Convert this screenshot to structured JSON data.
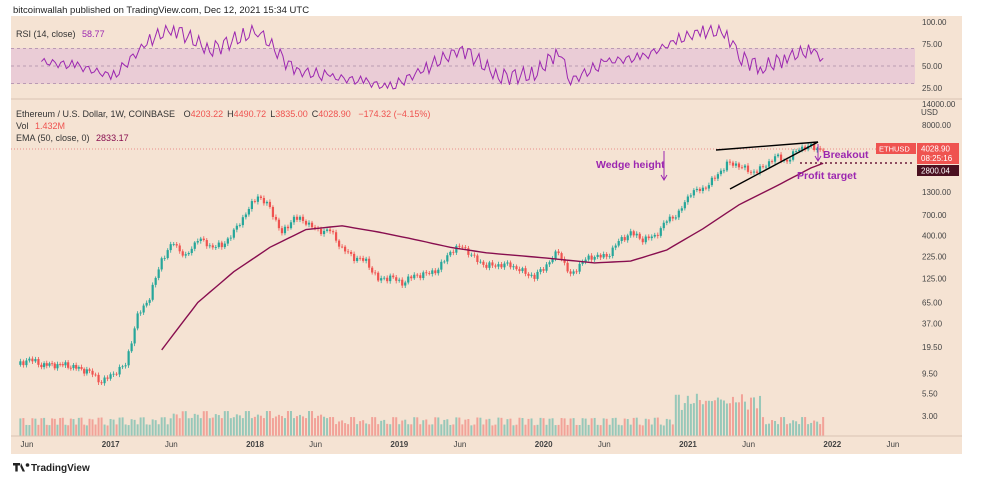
{
  "publisher_line": "bitcoinwallah published on TradingView.com, Dec 12, 2021 15:34 UTC",
  "footer_brand": "TradingView",
  "colors": {
    "bg": "#f5e3d3",
    "up": "#26a69a",
    "down": "#ef5350",
    "rsi": "#9c27b0",
    "ema": "#880e4f",
    "annot": "#9c27b0",
    "price_tag": "#ef5350",
    "target_tag": "#4a1020"
  },
  "rsi_panel": {
    "legend_name": "RSI (14, close)",
    "legend_value": "58.77",
    "ticks": [
      "100.00",
      "75.00",
      "50.00",
      "25.00"
    ],
    "upper_band": 70,
    "lower_band": 30
  },
  "main_panel": {
    "symbol_line": "Ethereum / U.S. Dollar, 1W, COINBASE",
    "ohlc": [
      {
        "k": "O",
        "v": "4203.22"
      },
      {
        "k": "H",
        "v": "4490.72"
      },
      {
        "k": "L",
        "v": "3835.00"
      },
      {
        "k": "C",
        "v": "4028.90"
      }
    ],
    "change": "−174.32 (−4.15%)",
    "vol_label": "Vol",
    "vol_value": "1.432M",
    "ema_label": "EMA (50, close, 0)",
    "ema_value": "2833.17",
    "currency": "USD",
    "price_ticks": [
      "14000.00",
      "8000.00",
      "4028.90",
      "1300.00",
      "700.00",
      "400.00",
      "225.00",
      "125.00",
      "65.00",
      "37.00",
      "19.50",
      "9.50",
      "5.50",
      "3.00"
    ],
    "x_ticks": [
      "Jun",
      "2017",
      "Jun",
      "2018",
      "Jun",
      "2019",
      "Jun",
      "2020",
      "Jun",
      "2021",
      "Jun",
      "2022",
      "Jun"
    ],
    "price_tag": {
      "symbol": "ETHUSD",
      "price": "4028.90",
      "countdown": "08:25:16"
    },
    "target_tag": "2800.04",
    "annotations": {
      "wedge_height": "Wedge height",
      "breakout": "Breakout",
      "profit_target": "Profit target"
    }
  },
  "chart_data": {
    "type": "candlestick",
    "title": "Ethereum / U.S. Dollar, 1W, COINBASE",
    "y_scale": "log",
    "ylim": [
      2.2,
      20000
    ],
    "x_range": [
      "2016-05",
      "2022-08"
    ],
    "ohlc_last": {
      "open": 4203.22,
      "high": 4490.72,
      "low": 3835.0,
      "close": 4028.9,
      "change": -174.32,
      "change_pct": -4.15
    },
    "ema50": 2833.17,
    "profit_target": 2800.04,
    "rsi": {
      "period": 14,
      "value": 58.77,
      "range": [
        0,
        100
      ]
    },
    "series": [
      {
        "name": "ETHUSD close (approx)",
        "points": [
          [
            "2016-05",
            12
          ],
          [
            "2016-06",
            14
          ],
          [
            "2016-07",
            12
          ],
          [
            "2016-09",
            12
          ],
          [
            "2016-11",
            10
          ],
          [
            "2016-12",
            7.5
          ],
          [
            "2017-01",
            9.5
          ],
          [
            "2017-02",
            12
          ],
          [
            "2017-03",
            45
          ],
          [
            "2017-04",
            75
          ],
          [
            "2017-05",
            210
          ],
          [
            "2017-06",
            330
          ],
          [
            "2017-07",
            220
          ],
          [
            "2017-08",
            370
          ],
          [
            "2017-09",
            300
          ],
          [
            "2017-10",
            300
          ],
          [
            "2017-11",
            440
          ],
          [
            "2017-12",
            730
          ],
          [
            "2018-01",
            1180
          ],
          [
            "2018-02",
            850
          ],
          [
            "2018-03",
            420
          ],
          [
            "2018-04",
            650
          ],
          [
            "2018-05",
            580
          ],
          [
            "2018-06",
            450
          ],
          [
            "2018-07",
            460
          ],
          [
            "2018-08",
            280
          ],
          [
            "2018-09",
            220
          ],
          [
            "2018-10",
            200
          ],
          [
            "2018-11",
            120
          ],
          [
            "2018-12",
            130
          ],
          [
            "2019-01",
            110
          ],
          [
            "2019-02",
            135
          ],
          [
            "2019-03",
            140
          ],
          [
            "2019-04",
            160
          ],
          [
            "2019-05",
            260
          ],
          [
            "2019-06",
            300
          ],
          [
            "2019-07",
            215
          ],
          [
            "2019-08",
            175
          ],
          [
            "2019-09",
            180
          ],
          [
            "2019-10",
            180
          ],
          [
            "2019-11",
            150
          ],
          [
            "2019-12",
            130
          ],
          [
            "2020-01",
            180
          ],
          [
            "2020-02",
            260
          ],
          [
            "2020-03",
            133
          ],
          [
            "2020-04",
            200
          ],
          [
            "2020-05",
            230
          ],
          [
            "2020-06",
            225
          ],
          [
            "2020-07",
            340
          ],
          [
            "2020-08",
            430
          ],
          [
            "2020-09",
            360
          ],
          [
            "2020-10",
            390
          ],
          [
            "2020-11",
            600
          ],
          [
            "2020-12",
            730
          ],
          [
            "2021-01",
            1300
          ],
          [
            "2021-02",
            1400
          ],
          [
            "2021-03",
            1900
          ],
          [
            "2021-04",
            2800
          ],
          [
            "2021-05",
            2700
          ],
          [
            "2021-06",
            2200
          ],
          [
            "2021-07",
            2500
          ],
          [
            "2021-08",
            3400
          ],
          [
            "2021-09",
            3000
          ],
          [
            "2021-10",
            4300
          ],
          [
            "2021-11",
            4450
          ],
          [
            "2021-12",
            4028.9
          ]
        ]
      },
      {
        "name": "EMA (50, close, 0)",
        "points": [
          [
            "2017-05",
            18
          ],
          [
            "2017-08",
            65
          ],
          [
            "2017-11",
            150
          ],
          [
            "2018-02",
            290
          ],
          [
            "2018-05",
            470
          ],
          [
            "2018-08",
            520
          ],
          [
            "2018-11",
            440
          ],
          [
            "2019-02",
            360
          ],
          [
            "2019-05",
            290
          ],
          [
            "2019-08",
            250
          ],
          [
            "2019-11",
            230
          ],
          [
            "2020-02",
            210
          ],
          [
            "2020-05",
            190
          ],
          [
            "2020-08",
            200
          ],
          [
            "2020-11",
            270
          ],
          [
            "2021-02",
            480
          ],
          [
            "2021-05",
            920
          ],
          [
            "2021-08",
            1500
          ],
          [
            "2021-11",
            2500
          ],
          [
            "2021-12",
            2833.17
          ]
        ]
      }
    ],
    "rsi_points": [
      [
        "2016-07",
        55
      ],
      [
        "2016-10",
        50
      ],
      [
        "2017-01",
        38
      ],
      [
        "2017-04",
        80
      ],
      [
        "2017-06",
        93
      ],
      [
        "2017-09",
        68
      ],
      [
        "2017-12",
        85
      ],
      [
        "2018-01",
        90
      ],
      [
        "2018-04",
        45
      ],
      [
        "2018-07",
        38
      ],
      [
        "2018-10",
        32
      ],
      [
        "2018-12",
        25
      ],
      [
        "2019-03",
        48
      ],
      [
        "2019-06",
        70
      ],
      [
        "2019-09",
        38
      ],
      [
        "2019-12",
        40
      ],
      [
        "2020-02",
        68
      ],
      [
        "2020-03",
        33
      ],
      [
        "2020-06",
        55
      ],
      [
        "2020-09",
        60
      ],
      [
        "2020-12",
        80
      ],
      [
        "2021-02",
        90
      ],
      [
        "2021-04",
        88
      ],
      [
        "2021-05",
        60
      ],
      [
        "2021-07",
        48
      ],
      [
        "2021-09",
        60
      ],
      [
        "2021-11",
        68
      ],
      [
        "2021-12",
        58.77
      ]
    ],
    "volume_relative": "bars along bottom; peaks near 2021-01 and 2021-05"
  }
}
